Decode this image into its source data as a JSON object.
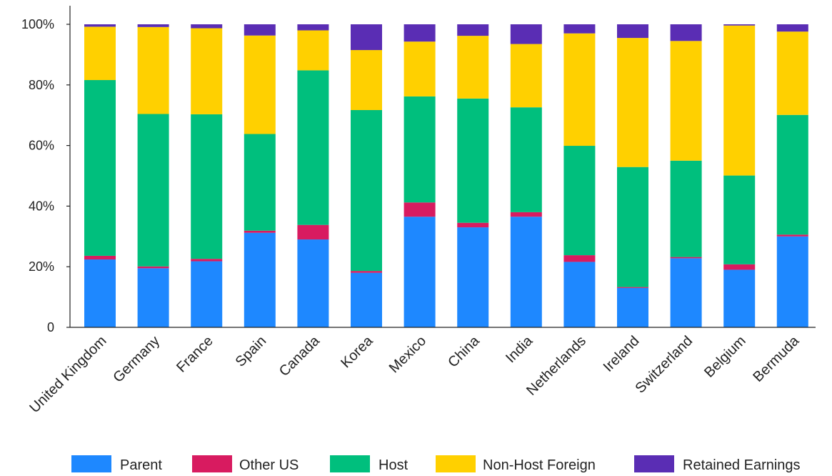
{
  "chart_data": {
    "type": "bar",
    "stacked": true,
    "percent": true,
    "title": "",
    "xlabel": "",
    "ylabel": "",
    "ylim": [
      0,
      100
    ],
    "y_ticks": [
      "0",
      "20%",
      "40%",
      "60%",
      "80%",
      "100%"
    ],
    "grid": false,
    "legend_position": "bottom",
    "categories": [
      "United Kingdom",
      "Germany",
      "France",
      "Spain",
      "Canada",
      "Korea",
      "Mexico",
      "China",
      "India",
      "Netherlands",
      "Ireland",
      "Switzerland",
      "Belgium",
      "Bermuda"
    ],
    "series": [
      {
        "name": "Parent",
        "color": "#1e88ff",
        "values": [
          22.4,
          19.5,
          21.8,
          31.2,
          29.0,
          18.0,
          36.5,
          33.0,
          36.5,
          21.6,
          13.0,
          22.8,
          19.0,
          30.0
        ]
      },
      {
        "name": "Other US",
        "color": "#d81b60",
        "values": [
          1.2,
          0.6,
          0.8,
          0.7,
          4.8,
          0.6,
          4.7,
          1.5,
          1.5,
          2.2,
          0.3,
          0.4,
          1.8,
          0.6
        ]
      },
      {
        "name": "Host",
        "color": "#00bf7d",
        "values": [
          58.0,
          50.3,
          47.7,
          31.9,
          51.0,
          53.1,
          35.0,
          41.0,
          34.6,
          36.1,
          39.6,
          31.8,
          29.3,
          39.5
        ]
      },
      {
        "name": "Non-Host Foreign",
        "color": "#ffd000",
        "values": [
          17.6,
          28.7,
          28.4,
          32.5,
          13.2,
          19.8,
          18.1,
          20.7,
          20.9,
          37.1,
          42.6,
          39.5,
          49.5,
          27.5
        ]
      },
      {
        "name": "Retained Earnings",
        "color": "#5a2db4",
        "values": [
          0.8,
          0.9,
          1.3,
          3.7,
          2.0,
          8.5,
          5.7,
          3.8,
          6.5,
          3.0,
          4.5,
          5.5,
          0.4,
          2.4
        ]
      }
    ]
  }
}
